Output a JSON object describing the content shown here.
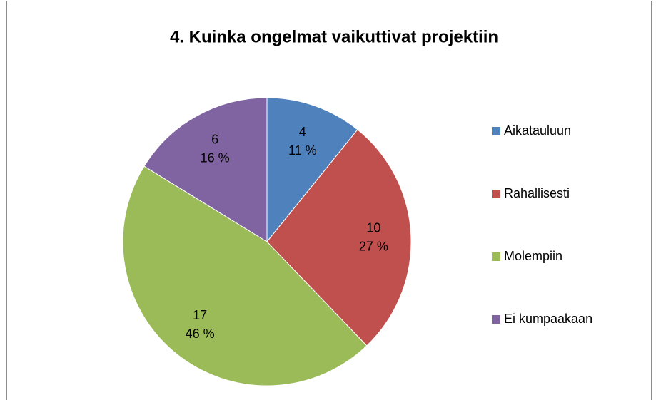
{
  "chart_data": {
    "type": "pie",
    "title": "4. Kuinka ongelmat vaikuttivat projektiin",
    "categories": [
      "Aikatauluun",
      "Rahallisesti",
      "Molempiin",
      "Ei kumpaakaan"
    ],
    "values": [
      4,
      10,
      17,
      6
    ],
    "percent_labels": [
      "11 %",
      "27 %",
      "46 %",
      "16 %"
    ],
    "colors": [
      "#4f81bd",
      "#c0504d",
      "#9bbb59",
      "#8064a2"
    ],
    "legend": "right"
  }
}
